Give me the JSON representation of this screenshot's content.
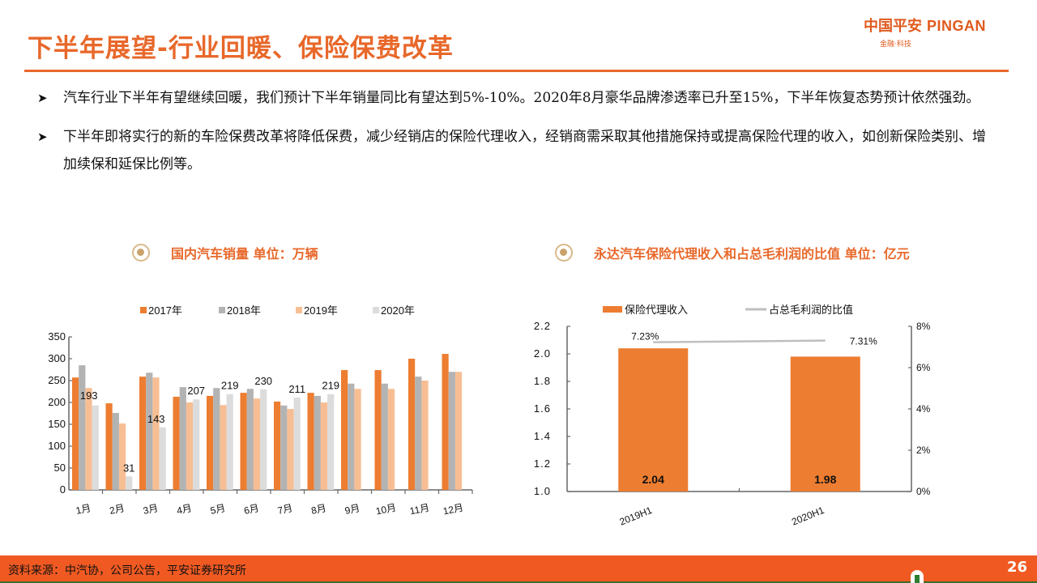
{
  "header": {
    "title": "下半年展望-行业回暖、保险保费改革",
    "logo_cn": "中国平安",
    "logo_en": "PINGAN",
    "logo_sub": "金融·科技"
  },
  "bullets": [
    {
      "icon": "arrow-bullet-icon",
      "text": "汽车行业下半年有望继续回暖，我们预计下半年销量同比有望达到5%-10%。2020年8月豪华品牌渗透率已升至15%，下半年恢复态势预计依然强劲。"
    },
    {
      "icon": "arrow-bullet-icon",
      "text": "下半年即将实行的新的车险保费改革将降低保费，减少经销店的保险代理收入，经销商需采取其他措施保持或提高保险代理的收入，如创新保险类别、增加续保和延保比例等。"
    }
  ],
  "sections": [
    {
      "icon": "radio-target-icon",
      "title": "国内汽车销量 单位：万辆"
    },
    {
      "icon": "radio-target-icon",
      "title": "永达汽车保险代理收入和占总毛利润的比值 单位：亿元"
    }
  ],
  "colors": {
    "accent": "#E8682A",
    "s2017": "#ED7D31",
    "s2018": "#B3B3B3",
    "s2019": "#F7BE94",
    "s2020": "#DCDCDC",
    "footer": "#F05A22",
    "line": "#BFBFBF"
  },
  "chart_data": [
    {
      "type": "bar",
      "title": "国内汽车销量 单位：万辆",
      "categories": [
        "1月",
        "2月",
        "3月",
        "4月",
        "5月",
        "6月",
        "7月",
        "8月",
        "9月",
        "10月",
        "11月",
        "12月"
      ],
      "series": [
        {
          "name": "2017年",
          "values": [
            257,
            198,
            259,
            213,
            215,
            222,
            202,
            222,
            274,
            274,
            300,
            311
          ]
        },
        {
          "name": "2018年",
          "values": [
            285,
            176,
            268,
            235,
            233,
            231,
            193,
            215,
            243,
            243,
            259,
            270
          ]
        },
        {
          "name": "2019年",
          "values": [
            233,
            152,
            257,
            200,
            194,
            209,
            185,
            200,
            231,
            231,
            250,
            270
          ]
        },
        {
          "name": "2020年",
          "values": [
            193,
            31,
            143,
            207,
            219,
            230,
            211,
            219,
            null,
            null,
            null,
            null
          ]
        }
      ],
      "data_labels": {
        "2020年": [
          193,
          31,
          143,
          207,
          219,
          230,
          211,
          219
        ]
      },
      "yticks": [
        0,
        50,
        100,
        150,
        200,
        250,
        300,
        350
      ],
      "ylim": [
        0,
        350
      ],
      "xlabel": "",
      "ylabel": "",
      "legend_position": "top",
      "grid": false
    },
    {
      "type": "bar",
      "title": "永达汽车保险代理收入和占总毛利润的比值 单位：亿元",
      "categories": [
        "2019H1",
        "2020H1"
      ],
      "series": [
        {
          "name": "保险代理收入",
          "type": "bar",
          "axis": "left",
          "values": [
            2.04,
            1.98
          ]
        },
        {
          "name": "占总毛利润的比值",
          "type": "line",
          "axis": "right",
          "values": [
            7.23,
            7.31
          ],
          "labels": [
            "7.23%",
            "7.31%"
          ]
        }
      ],
      "yticks_left": [
        "1.0",
        "1.2",
        "1.4",
        "1.6",
        "1.8",
        "2.0",
        "2.2"
      ],
      "ylim_left": [
        1.0,
        2.2
      ],
      "yticks_right": [
        "0%",
        "2%",
        "4%",
        "6%",
        "8%"
      ],
      "ylim_right": [
        0,
        8
      ],
      "legend_position": "top",
      "grid": false
    }
  ],
  "footer": {
    "source": "资料来源：中汽协，公司公告，平安证券研究所",
    "page": "26"
  }
}
